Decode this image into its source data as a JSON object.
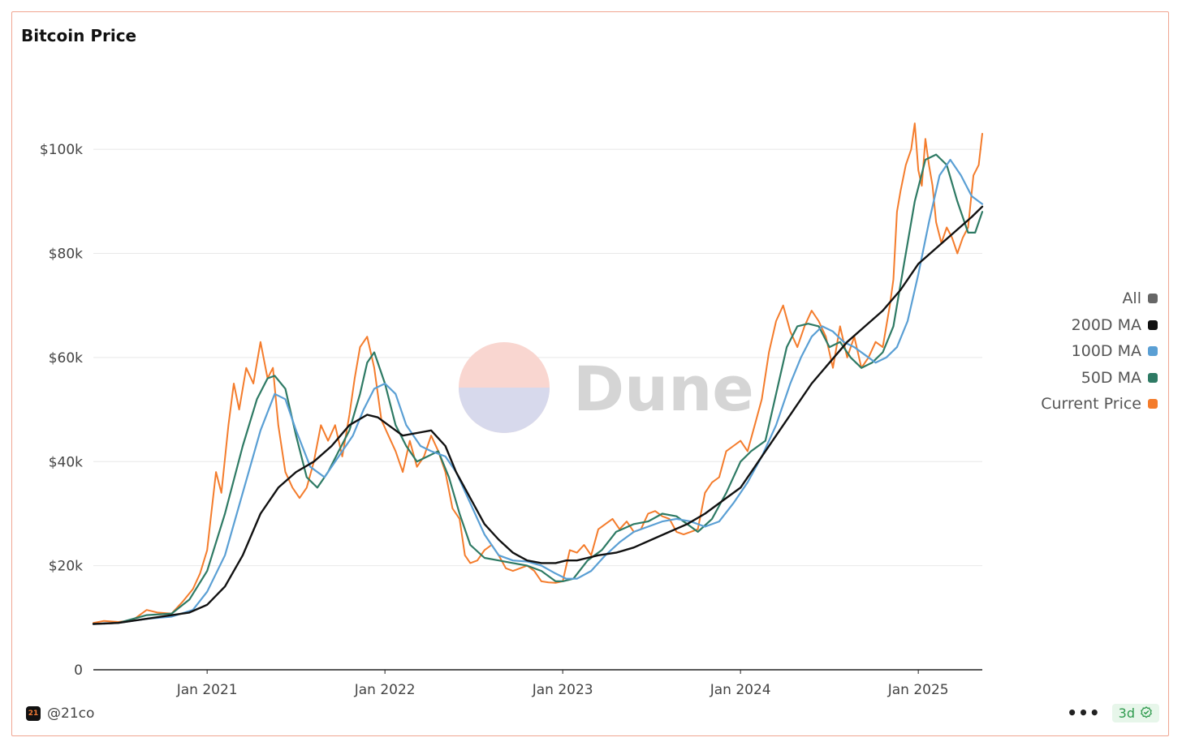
{
  "header": {
    "title": "Bitcoin Price"
  },
  "footer": {
    "author": "@21co",
    "avatar_text": "21",
    "more": "•••",
    "refresh_label": "3d"
  },
  "watermark": {
    "text": "Dune"
  },
  "colors": {
    "current": "#f47c2c",
    "ma50": "#2e7a64",
    "ma100": "#5a9fd4",
    "ma200": "#111111",
    "all": "#666666",
    "grid": "#e8e8e8"
  },
  "legend": [
    {
      "label": "All",
      "color": "#666666"
    },
    {
      "label": "200D MA",
      "color": "#111111"
    },
    {
      "label": "100D MA",
      "color": "#5a9fd4"
    },
    {
      "label": "50D MA",
      "color": "#2e7a64"
    },
    {
      "label": "Current Price",
      "color": "#f47c2c"
    }
  ],
  "chart_data": {
    "type": "line",
    "title": "Bitcoin Price",
    "xlabel": "",
    "ylabel": "",
    "xlim": [
      2020.36,
      2025.36
    ],
    "ylim": [
      0,
      110000
    ],
    "y_ticks": [
      0,
      20000,
      40000,
      60000,
      80000,
      100000
    ],
    "y_tick_labels": [
      "0",
      "$20k",
      "$40k",
      "$60k",
      "$80k",
      "$100k"
    ],
    "x_ticks": [
      2021.0,
      2022.0,
      2023.0,
      2024.0,
      2025.0
    ],
    "x_tick_labels": [
      "Jan 2021",
      "Jan 2022",
      "Jan 2023",
      "Jan 2024",
      "Jan 2025"
    ],
    "grid": true,
    "legend_position": "right",
    "series": [
      {
        "name": "Current Price",
        "x": [
          2020.36,
          2020.42,
          2020.5,
          2020.58,
          2020.66,
          2020.72,
          2020.8,
          2020.86,
          2020.92,
          2020.96,
          2021.0,
          2021.02,
          2021.05,
          2021.08,
          2021.12,
          2021.15,
          2021.18,
          2021.22,
          2021.26,
          2021.3,
          2021.34,
          2021.37,
          2021.4,
          2021.44,
          2021.48,
          2021.52,
          2021.56,
          2021.6,
          2021.64,
          2021.68,
          2021.72,
          2021.76,
          2021.8,
          2021.83,
          2021.86,
          2021.9,
          2021.94,
          2021.98,
          2022.02,
          2022.06,
          2022.1,
          2022.14,
          2022.18,
          2022.22,
          2022.26,
          2022.3,
          2022.34,
          2022.38,
          2022.42,
          2022.45,
          2022.48,
          2022.52,
          2022.56,
          2022.6,
          2022.64,
          2022.68,
          2022.72,
          2022.76,
          2022.8,
          2022.84,
          2022.88,
          2022.92,
          2022.96,
          2023.0,
          2023.04,
          2023.08,
          2023.12,
          2023.16,
          2023.2,
          2023.24,
          2023.28,
          2023.32,
          2023.36,
          2023.4,
          2023.44,
          2023.48,
          2023.52,
          2023.56,
          2023.6,
          2023.64,
          2023.68,
          2023.72,
          2023.76,
          2023.8,
          2023.84,
          2023.88,
          2023.92,
          2023.96,
          2024.0,
          2024.04,
          2024.08,
          2024.12,
          2024.16,
          2024.2,
          2024.24,
          2024.28,
          2024.32,
          2024.36,
          2024.4,
          2024.44,
          2024.48,
          2024.52,
          2024.56,
          2024.6,
          2024.64,
          2024.68,
          2024.72,
          2024.76,
          2024.8,
          2024.84,
          2024.86,
          2024.88,
          2024.9,
          2024.93,
          2024.96,
          2024.98,
          2025.0,
          2025.02,
          2025.04,
          2025.06,
          2025.08,
          2025.1,
          2025.13,
          2025.16,
          2025.19,
          2025.22,
          2025.25,
          2025.28,
          2025.31,
          2025.34,
          2025.36
        ],
        "values": [
          9000,
          9400,
          9200,
          9500,
          11500,
          11000,
          10800,
          13000,
          15500,
          18500,
          23000,
          29000,
          38000,
          34000,
          47000,
          55000,
          50000,
          58000,
          55000,
          63000,
          56000,
          58000,
          47000,
          38000,
          35000,
          33000,
          35000,
          40000,
          47000,
          44000,
          47000,
          41000,
          49000,
          56000,
          62000,
          64000,
          58000,
          48000,
          45000,
          42000,
          38000,
          44000,
          39000,
          41000,
          45000,
          42000,
          38000,
          31000,
          29000,
          22000,
          20500,
          21000,
          23000,
          24000,
          22000,
          19500,
          19000,
          19500,
          20000,
          19000,
          17000,
          16800,
          16700,
          17000,
          23000,
          22500,
          24000,
          22000,
          27000,
          28000,
          29000,
          27000,
          28500,
          26500,
          27000,
          30000,
          30500,
          29500,
          29000,
          26500,
          26000,
          26500,
          27000,
          34000,
          36000,
          37000,
          42000,
          43000,
          44000,
          42000,
          47000,
          52000,
          61000,
          67000,
          70000,
          65000,
          62000,
          66000,
          69000,
          67000,
          64000,
          58000,
          66000,
          60000,
          64000,
          58000,
          60000,
          63000,
          62000,
          70000,
          75000,
          88000,
          92000,
          97000,
          100000,
          105000,
          96000,
          93000,
          102000,
          97000,
          93000,
          86000,
          82000,
          85000,
          83000,
          80000,
          83000,
          85000,
          95000,
          97000,
          103000
        ]
      },
      {
        "name": "50D MA",
        "x": [
          2020.36,
          2020.5,
          2020.66,
          2020.8,
          2020.9,
          2021.0,
          2021.1,
          2021.2,
          2021.28,
          2021.34,
          2021.38,
          2021.44,
          2021.5,
          2021.56,
          2021.62,
          2021.68,
          2021.74,
          2021.8,
          2021.86,
          2021.9,
          2021.94,
          2022.0,
          2022.06,
          2022.12,
          2022.18,
          2022.24,
          2022.3,
          2022.36,
          2022.42,
          2022.48,
          2022.56,
          2022.64,
          2022.72,
          2022.8,
          2022.88,
          2022.96,
          2023.0,
          2023.06,
          2023.14,
          2023.22,
          2023.3,
          2023.4,
          2023.48,
          2023.56,
          2023.64,
          2023.7,
          2023.76,
          2023.84,
          2023.92,
          2024.0,
          2024.06,
          2024.14,
          2024.2,
          2024.26,
          2024.32,
          2024.38,
          2024.44,
          2024.5,
          2024.56,
          2024.62,
          2024.68,
          2024.74,
          2024.8,
          2024.86,
          2024.92,
          2024.98,
          2025.04,
          2025.1,
          2025.16,
          2025.22,
          2025.28,
          2025.32,
          2025.36
        ],
        "values": [
          8800,
          9000,
          10500,
          10800,
          13500,
          19000,
          30000,
          43000,
          52000,
          56000,
          56500,
          54000,
          45000,
          37000,
          35000,
          38000,
          42000,
          46000,
          53000,
          59000,
          61000,
          55000,
          47000,
          43000,
          40000,
          41000,
          42000,
          37000,
          30000,
          24000,
          21500,
          21000,
          20500,
          20000,
          19000,
          17000,
          17000,
          17500,
          21000,
          23000,
          26500,
          28000,
          28500,
          30000,
          29500,
          28000,
          26500,
          29000,
          34000,
          40000,
          42000,
          44000,
          53000,
          62000,
          66000,
          66500,
          66000,
          62000,
          63000,
          60000,
          58000,
          59000,
          61000,
          66000,
          78000,
          90000,
          98000,
          99000,
          97000,
          90000,
          84000,
          84000,
          88000
        ]
      },
      {
        "name": "100D MA",
        "x": [
          2020.36,
          2020.5,
          2020.66,
          2020.8,
          2020.92,
          2021.0,
          2021.1,
          2021.2,
          2021.3,
          2021.38,
          2021.44,
          2021.5,
          2021.58,
          2021.66,
          2021.74,
          2021.82,
          2021.88,
          2021.94,
          2022.0,
          2022.06,
          2022.12,
          2022.2,
          2022.26,
          2022.34,
          2022.4,
          2022.48,
          2022.56,
          2022.64,
          2022.72,
          2022.8,
          2022.88,
          2022.96,
          2023.02,
          2023.08,
          2023.16,
          2023.24,
          2023.32,
          2023.4,
          2023.48,
          2023.56,
          2023.64,
          2023.72,
          2023.8,
          2023.88,
          2023.96,
          2024.04,
          2024.12,
          2024.2,
          2024.28,
          2024.34,
          2024.4,
          2024.46,
          2024.52,
          2024.58,
          2024.64,
          2024.7,
          2024.76,
          2024.82,
          2024.88,
          2024.94,
          2025.0,
          2025.06,
          2025.12,
          2025.18,
          2025.24,
          2025.3,
          2025.36
        ],
        "values": [
          8800,
          9000,
          9800,
          10200,
          11500,
          15000,
          22000,
          34000,
          46000,
          53000,
          52000,
          46000,
          39000,
          37000,
          41000,
          45000,
          50000,
          54000,
          55000,
          53000,
          47000,
          43000,
          42000,
          41000,
          38000,
          32000,
          26000,
          22000,
          21000,
          20800,
          20000,
          18500,
          17500,
          17500,
          19000,
          22000,
          24500,
          26500,
          27500,
          28500,
          29000,
          28500,
          27500,
          28500,
          32000,
          36000,
          41000,
          47000,
          55000,
          60000,
          64000,
          66000,
          65000,
          63000,
          62000,
          60500,
          59000,
          60000,
          62000,
          67000,
          76000,
          86000,
          95000,
          98000,
          95000,
          91000,
          89500
        ]
      },
      {
        "name": "200D MA",
        "x": [
          2020.36,
          2020.5,
          2020.7,
          2020.9,
          2021.0,
          2021.1,
          2021.2,
          2021.3,
          2021.4,
          2021.5,
          2021.6,
          2021.7,
          2021.8,
          2021.9,
          2021.96,
          2022.02,
          2022.1,
          2022.18,
          2022.26,
          2022.34,
          2022.4,
          2022.48,
          2022.56,
          2022.64,
          2022.72,
          2022.8,
          2022.88,
          2022.96,
          2023.02,
          2023.08,
          2023.14,
          2023.2,
          2023.3,
          2023.4,
          2023.5,
          2023.6,
          2023.7,
          2023.8,
          2023.9,
          2024.0,
          2024.1,
          2024.2,
          2024.3,
          2024.4,
          2024.5,
          2024.6,
          2024.7,
          2024.8,
          2024.9,
          2025.0,
          2025.1,
          2025.2,
          2025.3,
          2025.36
        ],
        "values": [
          8800,
          9000,
          10000,
          11000,
          12500,
          16000,
          22000,
          30000,
          35000,
          38000,
          40000,
          43000,
          47000,
          49000,
          48500,
          47000,
          45000,
          45500,
          46000,
          43000,
          38000,
          33000,
          28000,
          25000,
          22500,
          21000,
          20500,
          20500,
          21000,
          21000,
          21500,
          22000,
          22500,
          23500,
          25000,
          26500,
          28000,
          30000,
          32500,
          35000,
          40000,
          45000,
          50000,
          55000,
          59000,
          63000,
          66000,
          69000,
          73000,
          78000,
          81000,
          84000,
          87000,
          89000
        ]
      }
    ]
  }
}
